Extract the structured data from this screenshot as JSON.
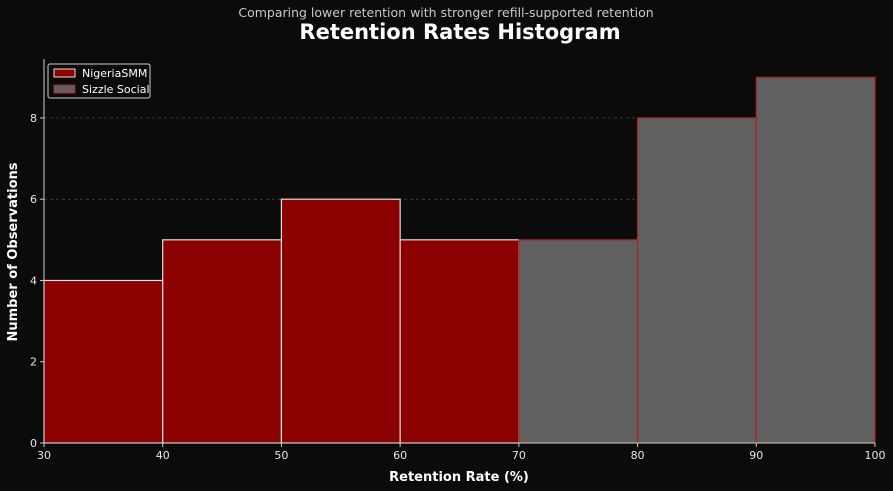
{
  "chart_data": {
    "type": "bar",
    "subtitle": "Comparing lower retention with stronger refill-supported retention",
    "title": "Retention Rates Histogram",
    "xlabel": "Retention Rate (%)",
    "ylabel": "Number of Observations",
    "xlim": [
      30,
      100
    ],
    "ylim": [
      0,
      9.45
    ],
    "xticks": [
      "30",
      "40",
      "50",
      "60",
      "70",
      "80",
      "90",
      "100"
    ],
    "yticks": [
      "0",
      "2",
      "4",
      "6",
      "8"
    ],
    "grid": "horizontal dashed",
    "legend_position": "top-left",
    "series": [
      {
        "name": "NigeriaSMM",
        "color": "#8b0000",
        "edge_color": "#e0e0e0",
        "bins": [
          [
            30,
            40
          ],
          [
            40,
            50
          ],
          [
            50,
            60
          ],
          [
            60,
            70
          ]
        ],
        "values": [
          4,
          5,
          6,
          5
        ]
      },
      {
        "name": "Sizzle Social",
        "color": "#606060",
        "edge_color": "#b22222",
        "bins": [
          [
            70,
            80
          ],
          [
            80,
            90
          ],
          [
            90,
            100
          ]
        ],
        "values": [
          5,
          8,
          9
        ]
      }
    ]
  }
}
